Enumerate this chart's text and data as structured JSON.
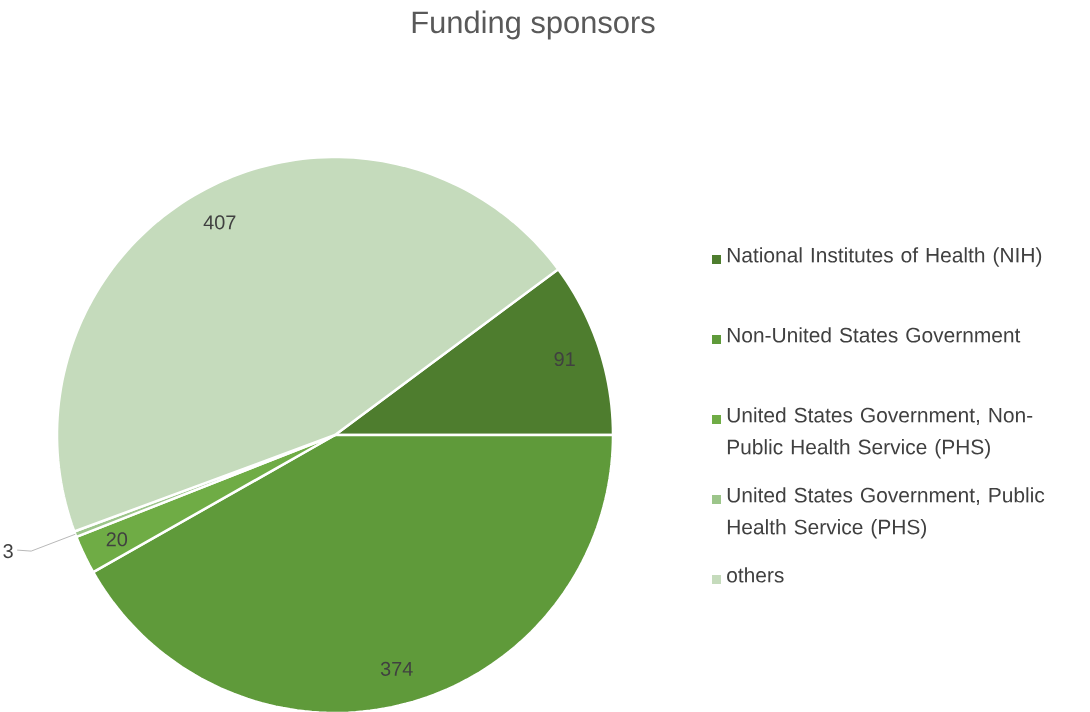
{
  "chart_data": {
    "type": "pie",
    "title": "Funding sponsors",
    "categories": [
      "National Institutes of Health (NIH)",
      "Non-United States Government",
      "United States Government, Non-Public Health Service (PHS)",
      "United States Government, Public Health Service (PHS)",
      "others"
    ],
    "values": [
      91,
      374,
      20,
      3,
      407
    ],
    "colors": [
      "#4e7d2e",
      "#5f9a3a",
      "#6fac45",
      "#9cc58a",
      "#c5dbbc"
    ],
    "data_labels": true,
    "legend": "right"
  }
}
